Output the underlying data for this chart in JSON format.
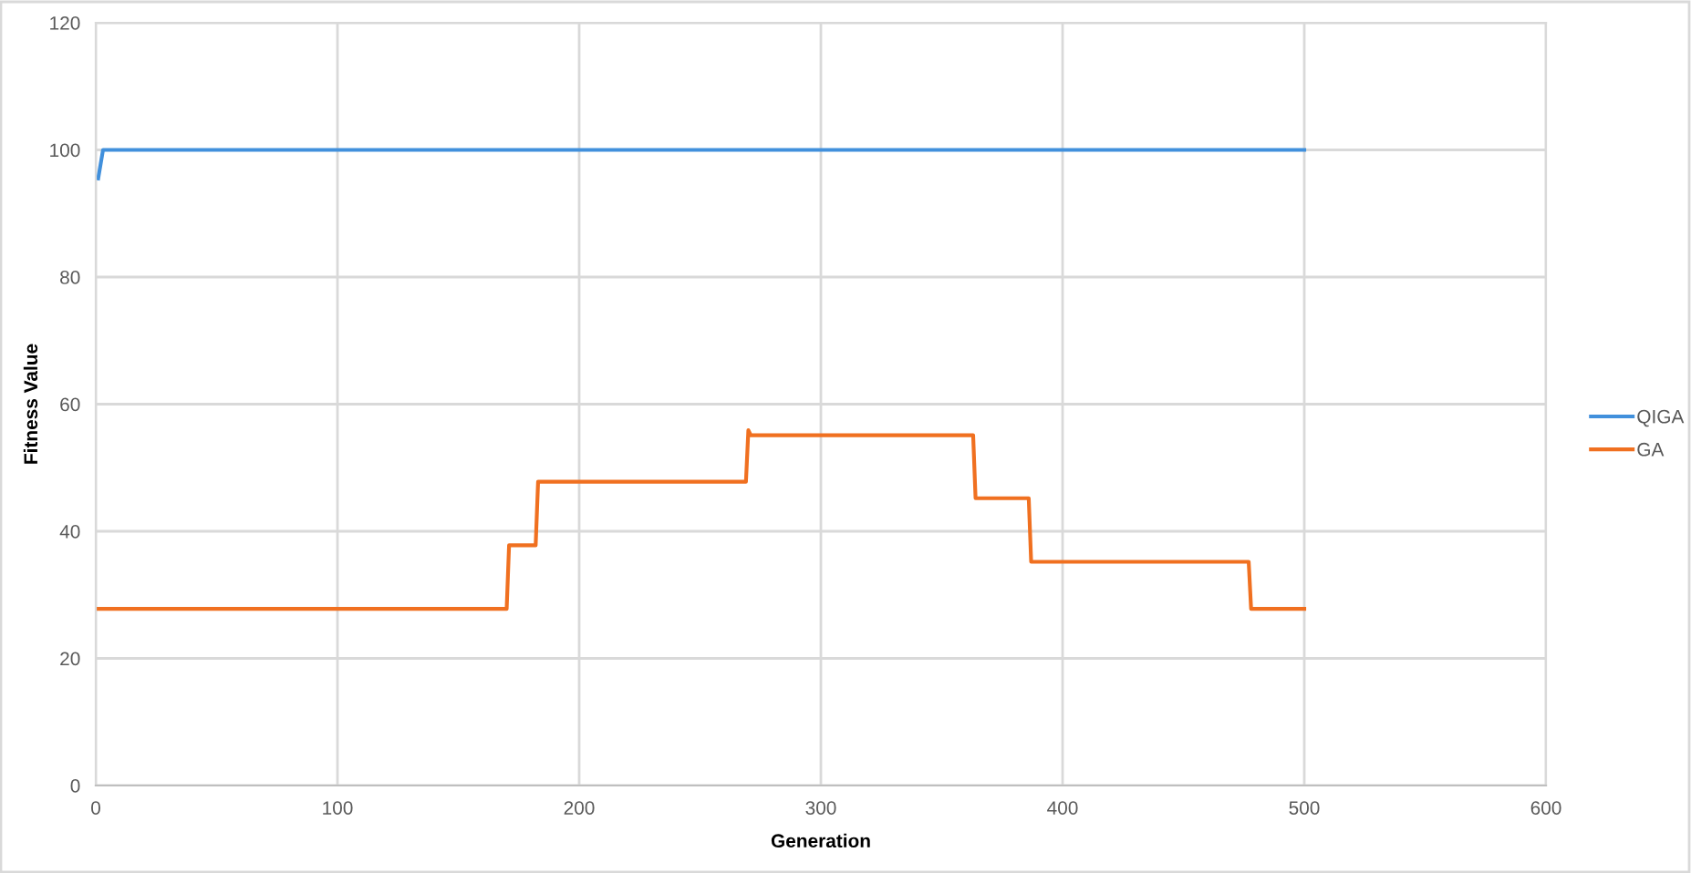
{
  "chart_data": {
    "type": "line",
    "xlabel": "Generation",
    "ylabel": "Fitness Value",
    "xlim": [
      0,
      600
    ],
    "xticks": [
      0,
      100,
      200,
      300,
      400,
      500,
      600
    ],
    "ylim": [
      0,
      120
    ],
    "yticks": [
      0,
      20,
      40,
      60,
      80,
      100,
      120
    ],
    "grid": true,
    "legend": "right",
    "marker": "none",
    "line_style": "solid",
    "series": [
      {
        "name": "QIGA",
        "color": "#4190dc",
        "x": [
          1,
          3,
          500
        ],
        "values": [
          95.5,
          100,
          100
        ]
      },
      {
        "name": "GA",
        "color": "#f07020",
        "x": [
          1,
          170,
          171,
          182,
          183,
          269,
          270,
          271,
          272,
          363,
          364,
          386,
          387,
          477,
          478,
          500
        ],
        "values": [
          27.8,
          27.8,
          37.8,
          37.8,
          47.8,
          47.8,
          55.9,
          55.1,
          55.1,
          55.1,
          45.2,
          45.2,
          35.2,
          35.2,
          27.8,
          27.8
        ]
      }
    ]
  }
}
